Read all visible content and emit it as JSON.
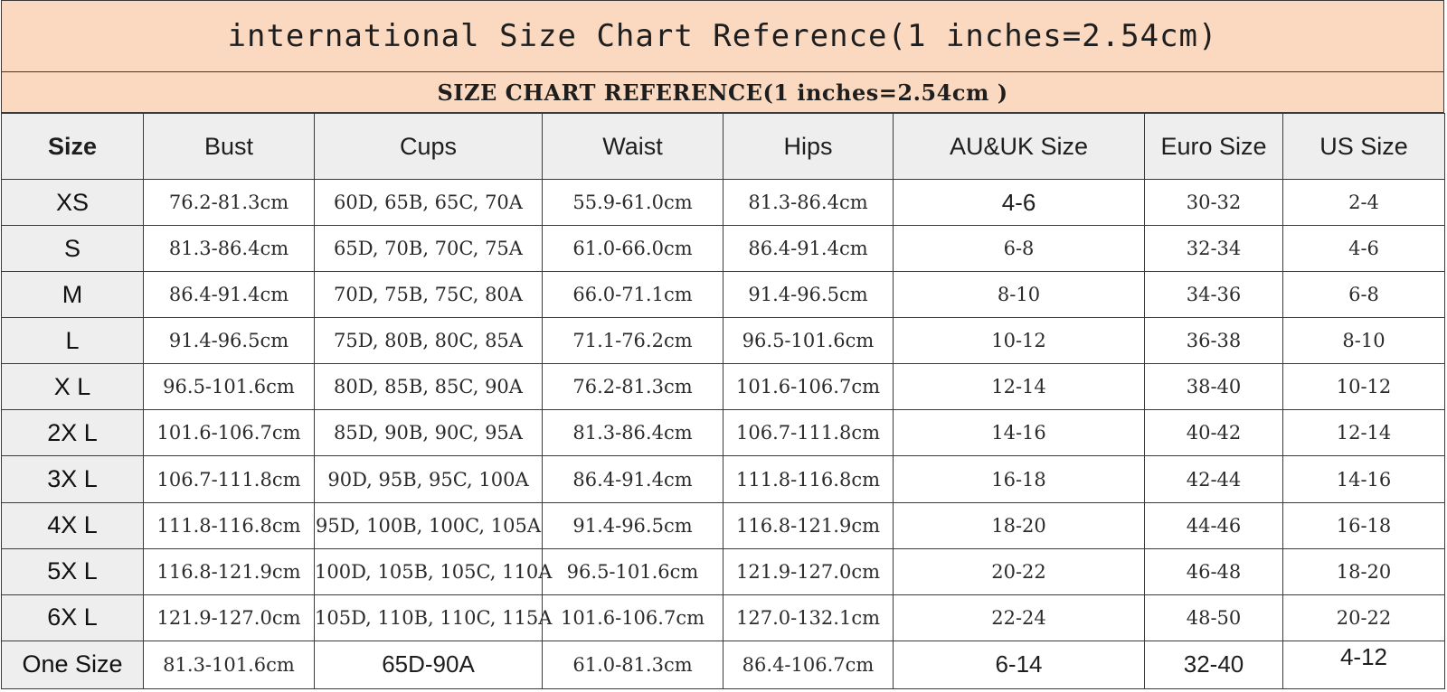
{
  "title": "international Size Chart Reference(1 inches=2.54cm)",
  "subtitle": "SIZE CHART REFERENCE(1 inches=2.54cm )",
  "columns": [
    "Size",
    "Bust",
    "Cups",
    "Waist",
    "Hips",
    "AU&UK Size",
    "Euro Size",
    "US Size"
  ],
  "rows": [
    {
      "size": "XS",
      "bust": "76.2-81.3cm",
      "cups": "60D, 65B, 65C, 70A",
      "waist": "55.9-61.0cm",
      "hips": "81.3-86.4cm",
      "auuk": "4-6",
      "euro": "30-32",
      "us": "2-4"
    },
    {
      "size": "S",
      "bust": "81.3-86.4cm",
      "cups": "65D, 70B, 70C, 75A",
      "waist": "61.0-66.0cm",
      "hips": "86.4-91.4cm",
      "auuk": "6-8",
      "euro": "32-34",
      "us": "4-6"
    },
    {
      "size": "M",
      "bust": "86.4-91.4cm",
      "cups": "70D, 75B, 75C, 80A",
      "waist": "66.0-71.1cm",
      "hips": "91.4-96.5cm",
      "auuk": "8-10",
      "euro": "34-36",
      "us": "6-8"
    },
    {
      "size": "L",
      "bust": "91.4-96.5cm",
      "cups": "75D, 80B, 80C, 85A",
      "waist": "71.1-76.2cm",
      "hips": "96.5-101.6cm",
      "auuk": "10-12",
      "euro": "36-38",
      "us": "8-10"
    },
    {
      "size": "X L",
      "bust": "96.5-101.6cm",
      "cups": "80D, 85B, 85C, 90A",
      "waist": "76.2-81.3cm",
      "hips": "101.6-106.7cm",
      "auuk": "12-14",
      "euro": "38-40",
      "us": "10-12"
    },
    {
      "size": "2X L",
      "bust": "101.6-106.7cm",
      "cups": "85D, 90B, 90C, 95A",
      "waist": "81.3-86.4cm",
      "hips": "106.7-111.8cm",
      "auuk": "14-16",
      "euro": "40-42",
      "us": "12-14"
    },
    {
      "size": "3X L",
      "bust": "106.7-111.8cm",
      "cups": "90D, 95B, 95C, 100A",
      "waist": "86.4-91.4cm",
      "hips": "111.8-116.8cm",
      "auuk": "16-18",
      "euro": "42-44",
      "us": "14-16"
    },
    {
      "size": "4X L",
      "bust": "111.8-116.8cm",
      "cups": "95D, 100B, 100C, 105A",
      "waist": "91.4-96.5cm",
      "hips": "116.8-121.9cm",
      "auuk": "18-20",
      "euro": "44-46",
      "us": "16-18"
    },
    {
      "size": "5X L",
      "bust": "116.8-121.9cm",
      "cups": "100D, 105B, 105C, 110A",
      "waist": "96.5-101.6cm",
      "hips": "121.9-127.0cm",
      "auuk": "20-22",
      "euro": "46-48",
      "us": "18-20"
    },
    {
      "size": "6X L",
      "bust": "121.9-127.0cm",
      "cups": "105D, 110B, 110C, 115A",
      "waist": "101.6-106.7cm",
      "hips": "127.0-132.1cm",
      "auuk": "22-24",
      "euro": "48-50",
      "us": "20-22"
    },
    {
      "size": "One Size",
      "bust": "81.3-101.6cm",
      "cups": "65D-90A",
      "waist": "61.0-81.3cm",
      "hips": "86.4-106.7cm",
      "auuk": "6-14",
      "euro": "32-40",
      "us": "4-12"
    }
  ]
}
